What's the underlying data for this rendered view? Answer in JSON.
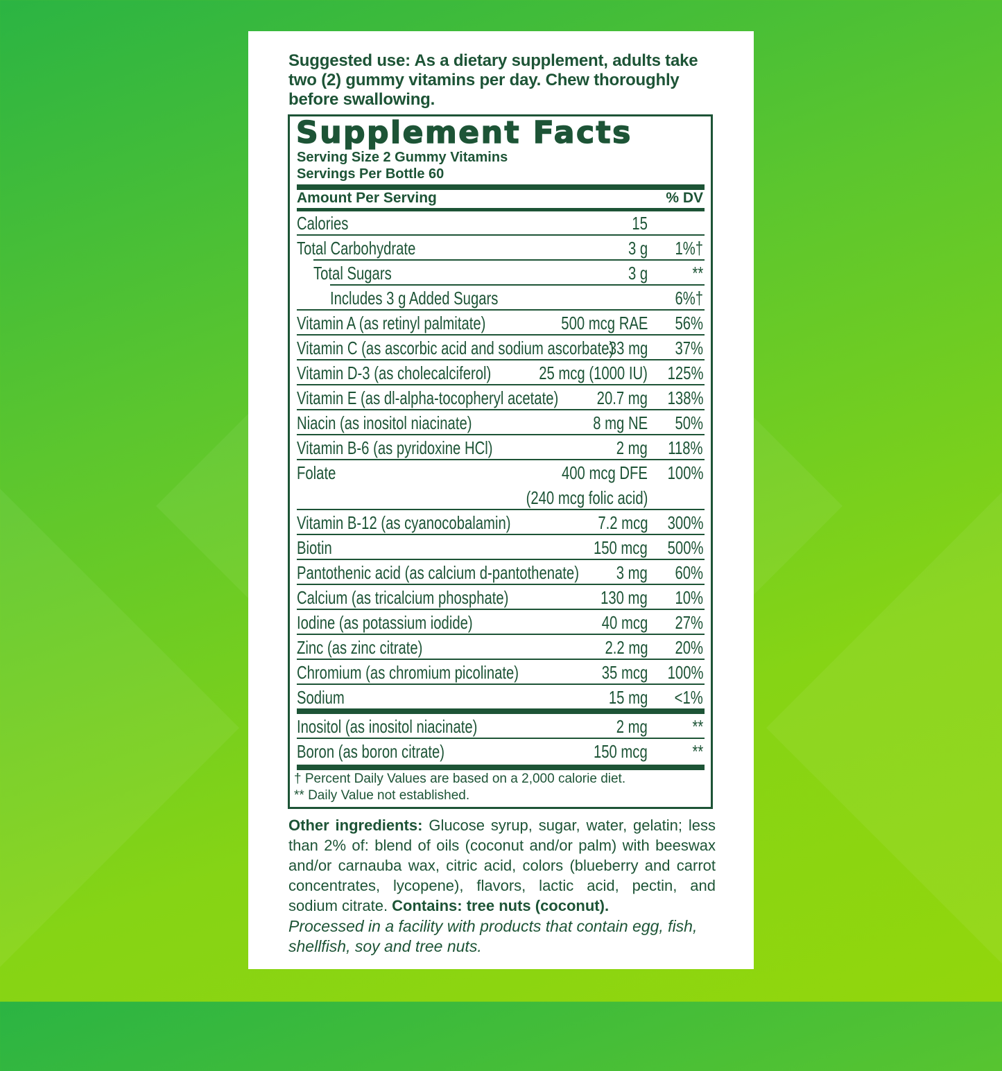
{
  "suggested_use": {
    "label": "Suggested use:",
    "text": " As a dietary supplement, adults take two (2) gummy vitamins per day. Chew thoroughly before swallowing."
  },
  "facts": {
    "title": "Supplement Facts",
    "serving_size": "Serving Size 2 Gummy Vitamins",
    "servings_per": "Servings Per Bottle 60",
    "header_amount": "Amount Per Serving",
    "header_dv": "% DV",
    "rows": [
      {
        "name": "Calories",
        "amount": "15",
        "dv": ""
      },
      {
        "name": "Total Carbohydrate",
        "amount": "3 g",
        "dv": "1%†"
      },
      {
        "name": "Total Sugars",
        "amount": "3 g",
        "dv": "**"
      },
      {
        "name": "Includes 3 g Added Sugars",
        "amount": "",
        "dv": "6%†"
      },
      {
        "name": "Vitamin A (as retinyl palmitate)",
        "amount": "500 mcg RAE",
        "dv": "56%"
      },
      {
        "name": "Vitamin C (as ascorbic acid and sodium ascorbate)",
        "amount": "33 mg",
        "dv": "37%"
      },
      {
        "name": "Vitamin D-3 (as cholecalciferol)",
        "amount": "25 mcg (1000 IU)",
        "dv": "125%"
      },
      {
        "name": "Vitamin E (as dl-alpha-tocopheryl acetate)",
        "amount": "20.7 mg",
        "dv": "138%"
      },
      {
        "name": "Niacin (as inositol niacinate)",
        "amount": "8 mg NE",
        "dv": "50%"
      },
      {
        "name": "Vitamin B-6 (as pyridoxine HCl)",
        "amount": "2 mg",
        "dv": "118%"
      },
      {
        "name": "Folate",
        "amount": "400 mcg DFE",
        "amount2": "(240 mcg folic acid)",
        "dv": "100%"
      },
      {
        "name": "Vitamin B-12 (as cyanocobalamin)",
        "amount": "7.2 mcg",
        "dv": "300%"
      },
      {
        "name": "Biotin",
        "amount": "150 mcg",
        "dv": "500%"
      },
      {
        "name": "Pantothenic acid (as calcium d-pantothenate)",
        "amount": "3 mg",
        "dv": "60%"
      },
      {
        "name": "Calcium (as tricalcium phosphate)",
        "amount": "130 mg",
        "dv": "10%"
      },
      {
        "name": "Iodine (as potassium iodide)",
        "amount": "40 mcg",
        "dv": "27%"
      },
      {
        "name": "Zinc (as zinc citrate)",
        "amount": "2.2 mg",
        "dv": "20%"
      },
      {
        "name": "Chromium (as chromium picolinate)",
        "amount": "35 mcg",
        "dv": "100%"
      },
      {
        "name": "Sodium",
        "amount": "15 mg",
        "dv": "<1%"
      },
      {
        "name": "Inositol (as inositol niacinate)",
        "amount": "2 mg",
        "dv": "**"
      },
      {
        "name": "Boron (as boron citrate)",
        "amount": "150 mcg",
        "dv": "**"
      }
    ],
    "footnote1": "† Percent Daily Values are based on a 2,000 calorie diet.",
    "footnote2": "** Daily Value not established."
  },
  "other_ingredients": {
    "label": "Other ingredients:",
    "text": " Glucose syrup, sugar, water, gelatin; less than 2% of: blend of oils (coconut and/or palm) with beeswax and/or carnauba wax, citric acid, colors (blueberry and carrot concentrates, lycopene), flavors, lactic acid, pectin, and sodium citrate. ",
    "contains": "Contains: tree nuts (coconut)."
  },
  "processed": "Processed in a facility with products that contain egg, fish, shellfish, soy and tree nuts.",
  "colors": {
    "text": "#1d5436",
    "bg_light": "#92d60c",
    "bg_dark": "#2bb443"
  }
}
